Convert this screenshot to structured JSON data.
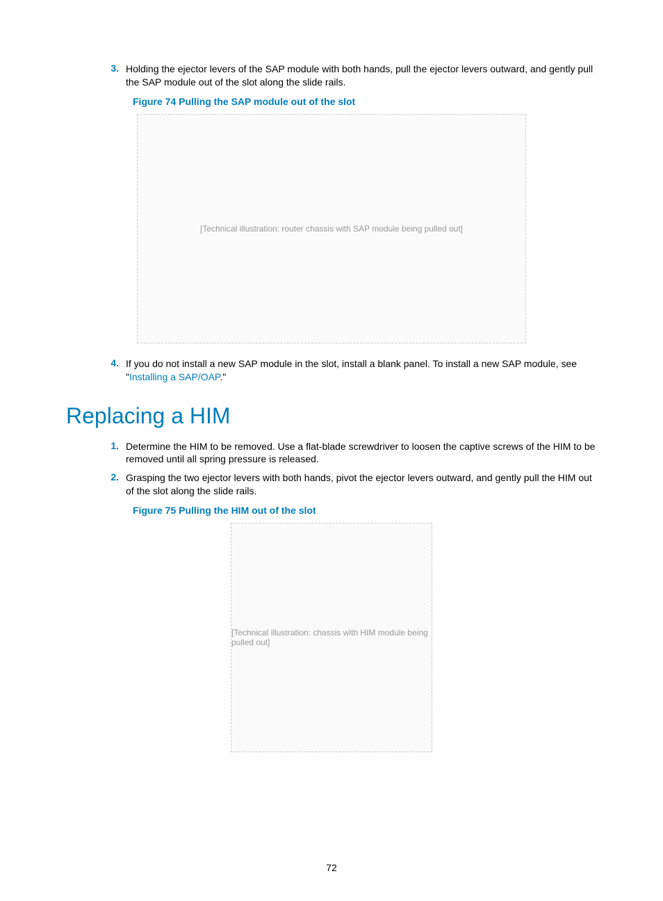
{
  "colors": {
    "accent": "#007dba",
    "text": "#000000",
    "background": "#ffffff"
  },
  "typography": {
    "body_fontsize": 14,
    "heading_fontsize": 32,
    "font_family": "Arial"
  },
  "steps": {
    "step3": {
      "num": "3.",
      "text": "Holding the ejector levers of the SAP module with both hands, pull the ejector levers outward, and gently pull the SAP module out of the slot along the slide rails."
    },
    "step4": {
      "num": "4.",
      "text_before": "If you do not install a new SAP module in the slot, install a blank panel. To install a new SAP module, see \"",
      "link": "Installing a SAP/OAP",
      "text_after": ".\""
    }
  },
  "figure74": {
    "caption": "Figure 74 Pulling the SAP module out of the slot",
    "placeholder": "[Technical illustration: router chassis with SAP module being pulled out]"
  },
  "heading": "Replacing a HIM",
  "him_steps": {
    "step1": {
      "num": "1.",
      "text": "Determine the HIM to be removed. Use a flat-blade screwdriver to loosen the captive screws of the HIM to be removed until all spring pressure is released."
    },
    "step2": {
      "num": "2.",
      "text": "Grasping the two ejector levers with both hands, pivot the ejector levers outward, and gently pull the HIM out of the slot along the slide rails."
    }
  },
  "figure75": {
    "caption": "Figure 75 Pulling the HIM out of the slot",
    "placeholder": "[Technical illustration: chassis with HIM module being pulled out]"
  },
  "page_number": "72"
}
